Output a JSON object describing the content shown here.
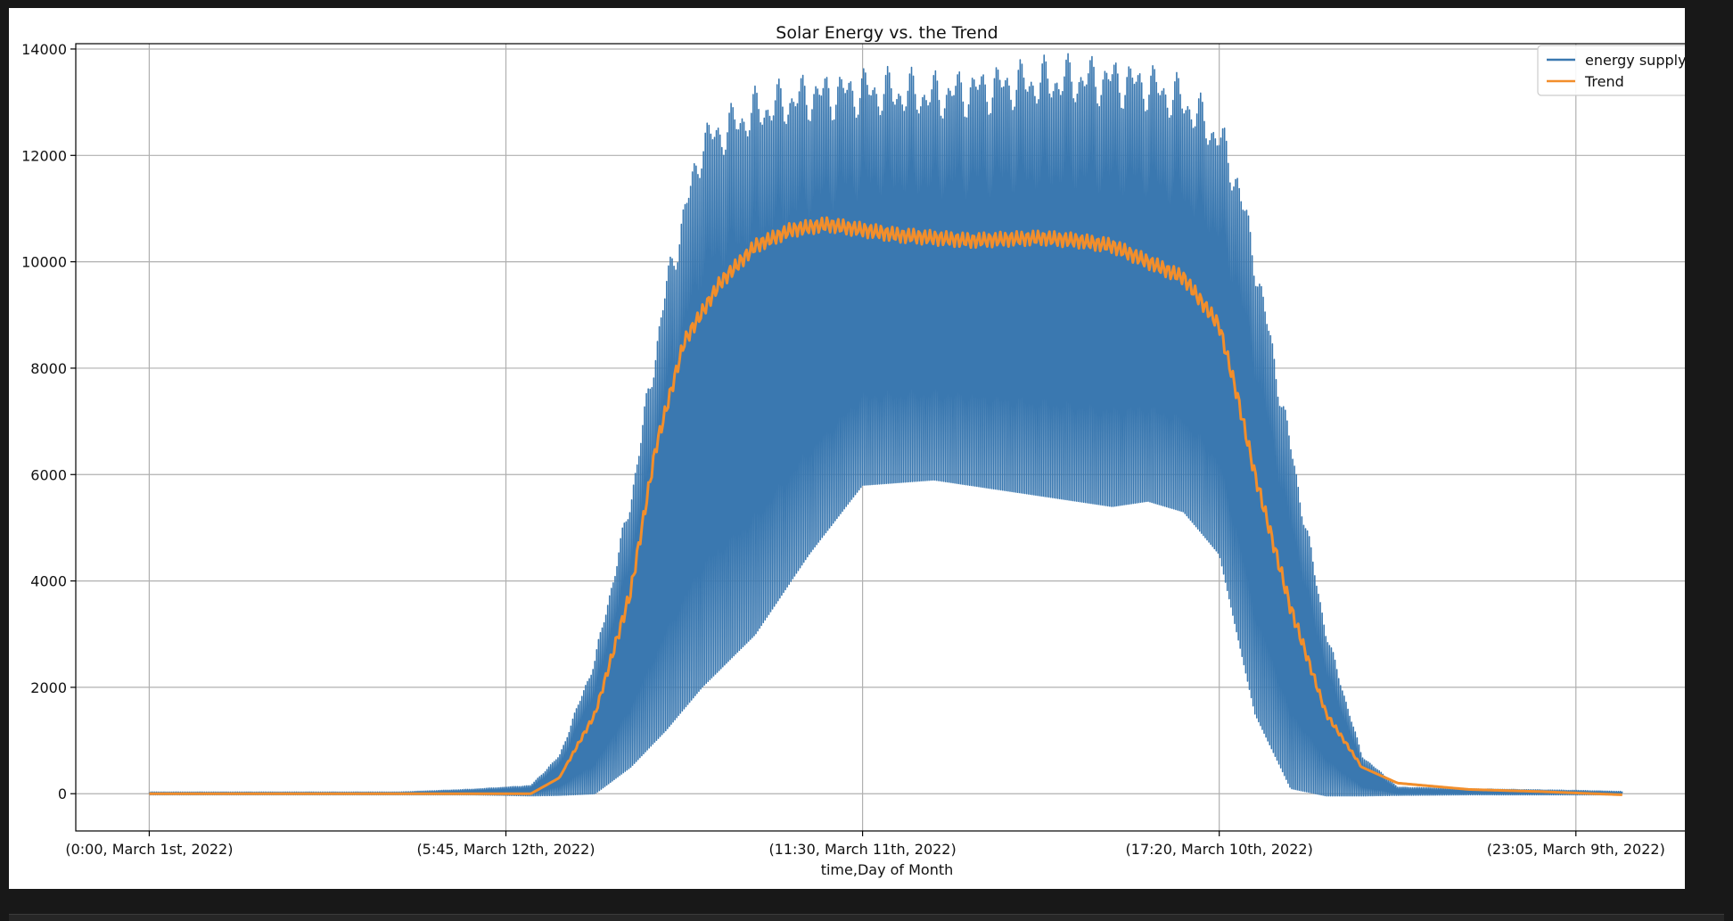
{
  "chart_data": {
    "type": "line",
    "title": "Solar Energy vs. the Trend",
    "xlabel": "time,Day of Month",
    "ylabel": "",
    "x_tick_labels": [
      "(0:00, March 1st, 2022)",
      "(5:45, March 12th, 2022)",
      "(11:30, March 11th, 2022)",
      "(17:20, March 10th, 2022)",
      "(23:05, March 9th, 2022)"
    ],
    "x_ticks": [
      0,
      1,
      2,
      3,
      4
    ],
    "xlim": [
      -0.206,
      4.343
    ],
    "ylim": [
      -700,
      14100
    ],
    "y_ticks": [
      0,
      2000,
      4000,
      6000,
      8000,
      10000,
      12000,
      14000
    ],
    "grid": true,
    "legend_position": "top-right",
    "series": [
      {
        "name": "energy supply",
        "color": "#3a78b0",
        "style": "oscillating band around the trend",
        "envelope": {
          "x": [
            0.0,
            0.7,
            0.9,
            1.0,
            1.07,
            1.15,
            1.25,
            1.35,
            1.45,
            1.55,
            1.7,
            1.85,
            2.0,
            2.2,
            2.4,
            2.6,
            2.7,
            2.8,
            2.9,
            3.0,
            3.05,
            3.1,
            3.2,
            3.3,
            3.4,
            3.5,
            3.7,
            3.9,
            4.0,
            4.13
          ],
          "upper": [
            30,
            30,
            80,
            120,
            150,
            700,
            2500,
            5500,
            9500,
            12200,
            12800,
            13100,
            13200,
            13100,
            13300,
            13400,
            13400,
            13300,
            13000,
            12300,
            11500,
            10000,
            6500,
            3000,
            700,
            120,
            90,
            70,
            60,
            40
          ],
          "lower": [
            -20,
            -20,
            -20,
            -30,
            -40,
            -30,
            0,
            500,
            1200,
            2000,
            3000,
            4500,
            5800,
            5900,
            5700,
            5500,
            5400,
            5500,
            5300,
            4500,
            3000,
            1500,
            100,
            -40,
            -40,
            -30,
            -20,
            -20,
            -20,
            -20
          ]
        }
      },
      {
        "name": "Trend",
        "color": "#f28e2b",
        "x": [
          0.0,
          0.5,
          1.0,
          1.07,
          1.15,
          1.25,
          1.35,
          1.42,
          1.5,
          1.6,
          1.7,
          1.8,
          1.9,
          2.0,
          2.1,
          2.3,
          2.5,
          2.6,
          2.7,
          2.75,
          2.8,
          2.9,
          3.0,
          3.05,
          3.1,
          3.2,
          3.3,
          3.4,
          3.5,
          3.7,
          3.9,
          4.13
        ],
        "y": [
          0,
          0,
          0,
          0,
          300,
          1500,
          3800,
          6500,
          8500,
          9600,
          10300,
          10600,
          10700,
          10600,
          10500,
          10400,
          10450,
          10400,
          10300,
          10150,
          10000,
          9700,
          8800,
          7500,
          6000,
          3500,
          1500,
          500,
          200,
          80,
          40,
          -20
        ]
      }
    ]
  }
}
